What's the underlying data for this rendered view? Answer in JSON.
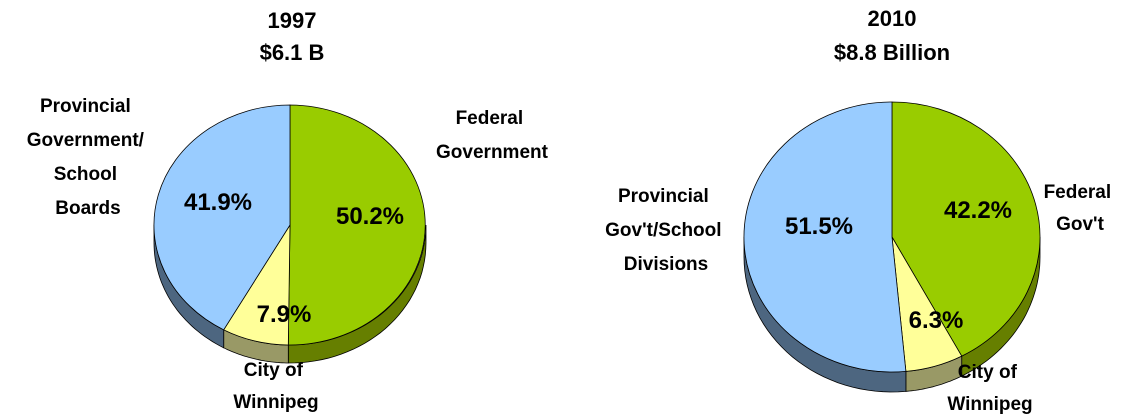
{
  "chart_data": [
    {
      "type": "pie",
      "title": "1997",
      "subtitle": "$6.1 B",
      "slices": [
        {
          "name_lines": [
            "Federal",
            "Government"
          ],
          "value": 50.2,
          "label": "50.2%",
          "color": "#99cc00",
          "side": "#667f00"
        },
        {
          "name_lines": [
            "City of",
            "Winnipeg"
          ],
          "value": 7.9,
          "label": "7.9%",
          "color": "#ffff99",
          "side": "#999966"
        },
        {
          "name_lines": [
            "Provincial",
            "Government/",
            "School",
            "Boards"
          ],
          "value": 41.9,
          "label": "41.9%",
          "color": "#99ccff",
          "side": "#4d6680"
        }
      ]
    },
    {
      "type": "pie",
      "title": "2010",
      "subtitle": "$8.8 Billion",
      "slices": [
        {
          "name_lines": [
            "Federal",
            "Gov't"
          ],
          "value": 42.2,
          "label": "42.2%",
          "color": "#99cc00",
          "side": "#667f00"
        },
        {
          "name_lines": [
            "City of",
            "Winnipeg"
          ],
          "value": 6.3,
          "label": "6.3%",
          "color": "#ffff99",
          "side": "#999966"
        },
        {
          "name_lines": [
            "Provincial",
            "Gov't/School",
            "Divisions"
          ],
          "value": 51.5,
          "label": "51.5%",
          "color": "#99ccff",
          "side": "#4d6680"
        }
      ]
    }
  ]
}
